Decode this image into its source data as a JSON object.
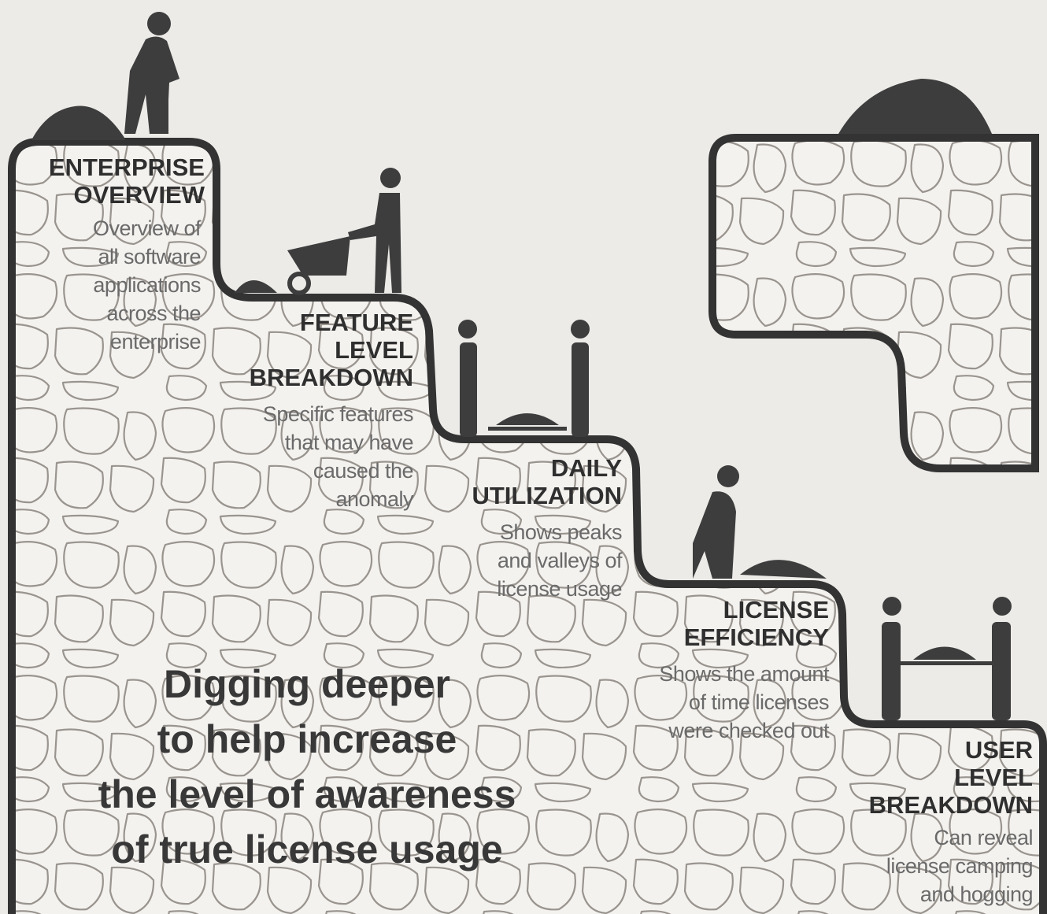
{
  "steps": [
    {
      "title": [
        "ENTERPRISE",
        "OVERVIEW"
      ],
      "description": [
        "Overview of",
        "all software",
        "applications",
        "across the",
        "enterprise"
      ]
    },
    {
      "title": [
        "FEATURE",
        "LEVEL",
        "BREAKDOWN"
      ],
      "description": [
        "Specific features",
        "that may have",
        "caused the",
        "anomaly"
      ]
    },
    {
      "title": [
        "DAILY",
        "UTILIZATION"
      ],
      "description": [
        "Shows peaks",
        "and valleys of",
        "license usage"
      ]
    },
    {
      "title": [
        "LICENSE",
        "EFFICIENCY"
      ],
      "description": [
        "Shows the amount",
        "of time licenses",
        "were checked out"
      ]
    },
    {
      "title": [
        "USER",
        "LEVEL",
        "BREAKDOWN"
      ],
      "description": [
        "Can reveal",
        "license camping",
        "and hogging"
      ]
    }
  ],
  "tagline": [
    "Digging deeper",
    "to help increase",
    "the level of awareness",
    "of true license usage"
  ]
}
